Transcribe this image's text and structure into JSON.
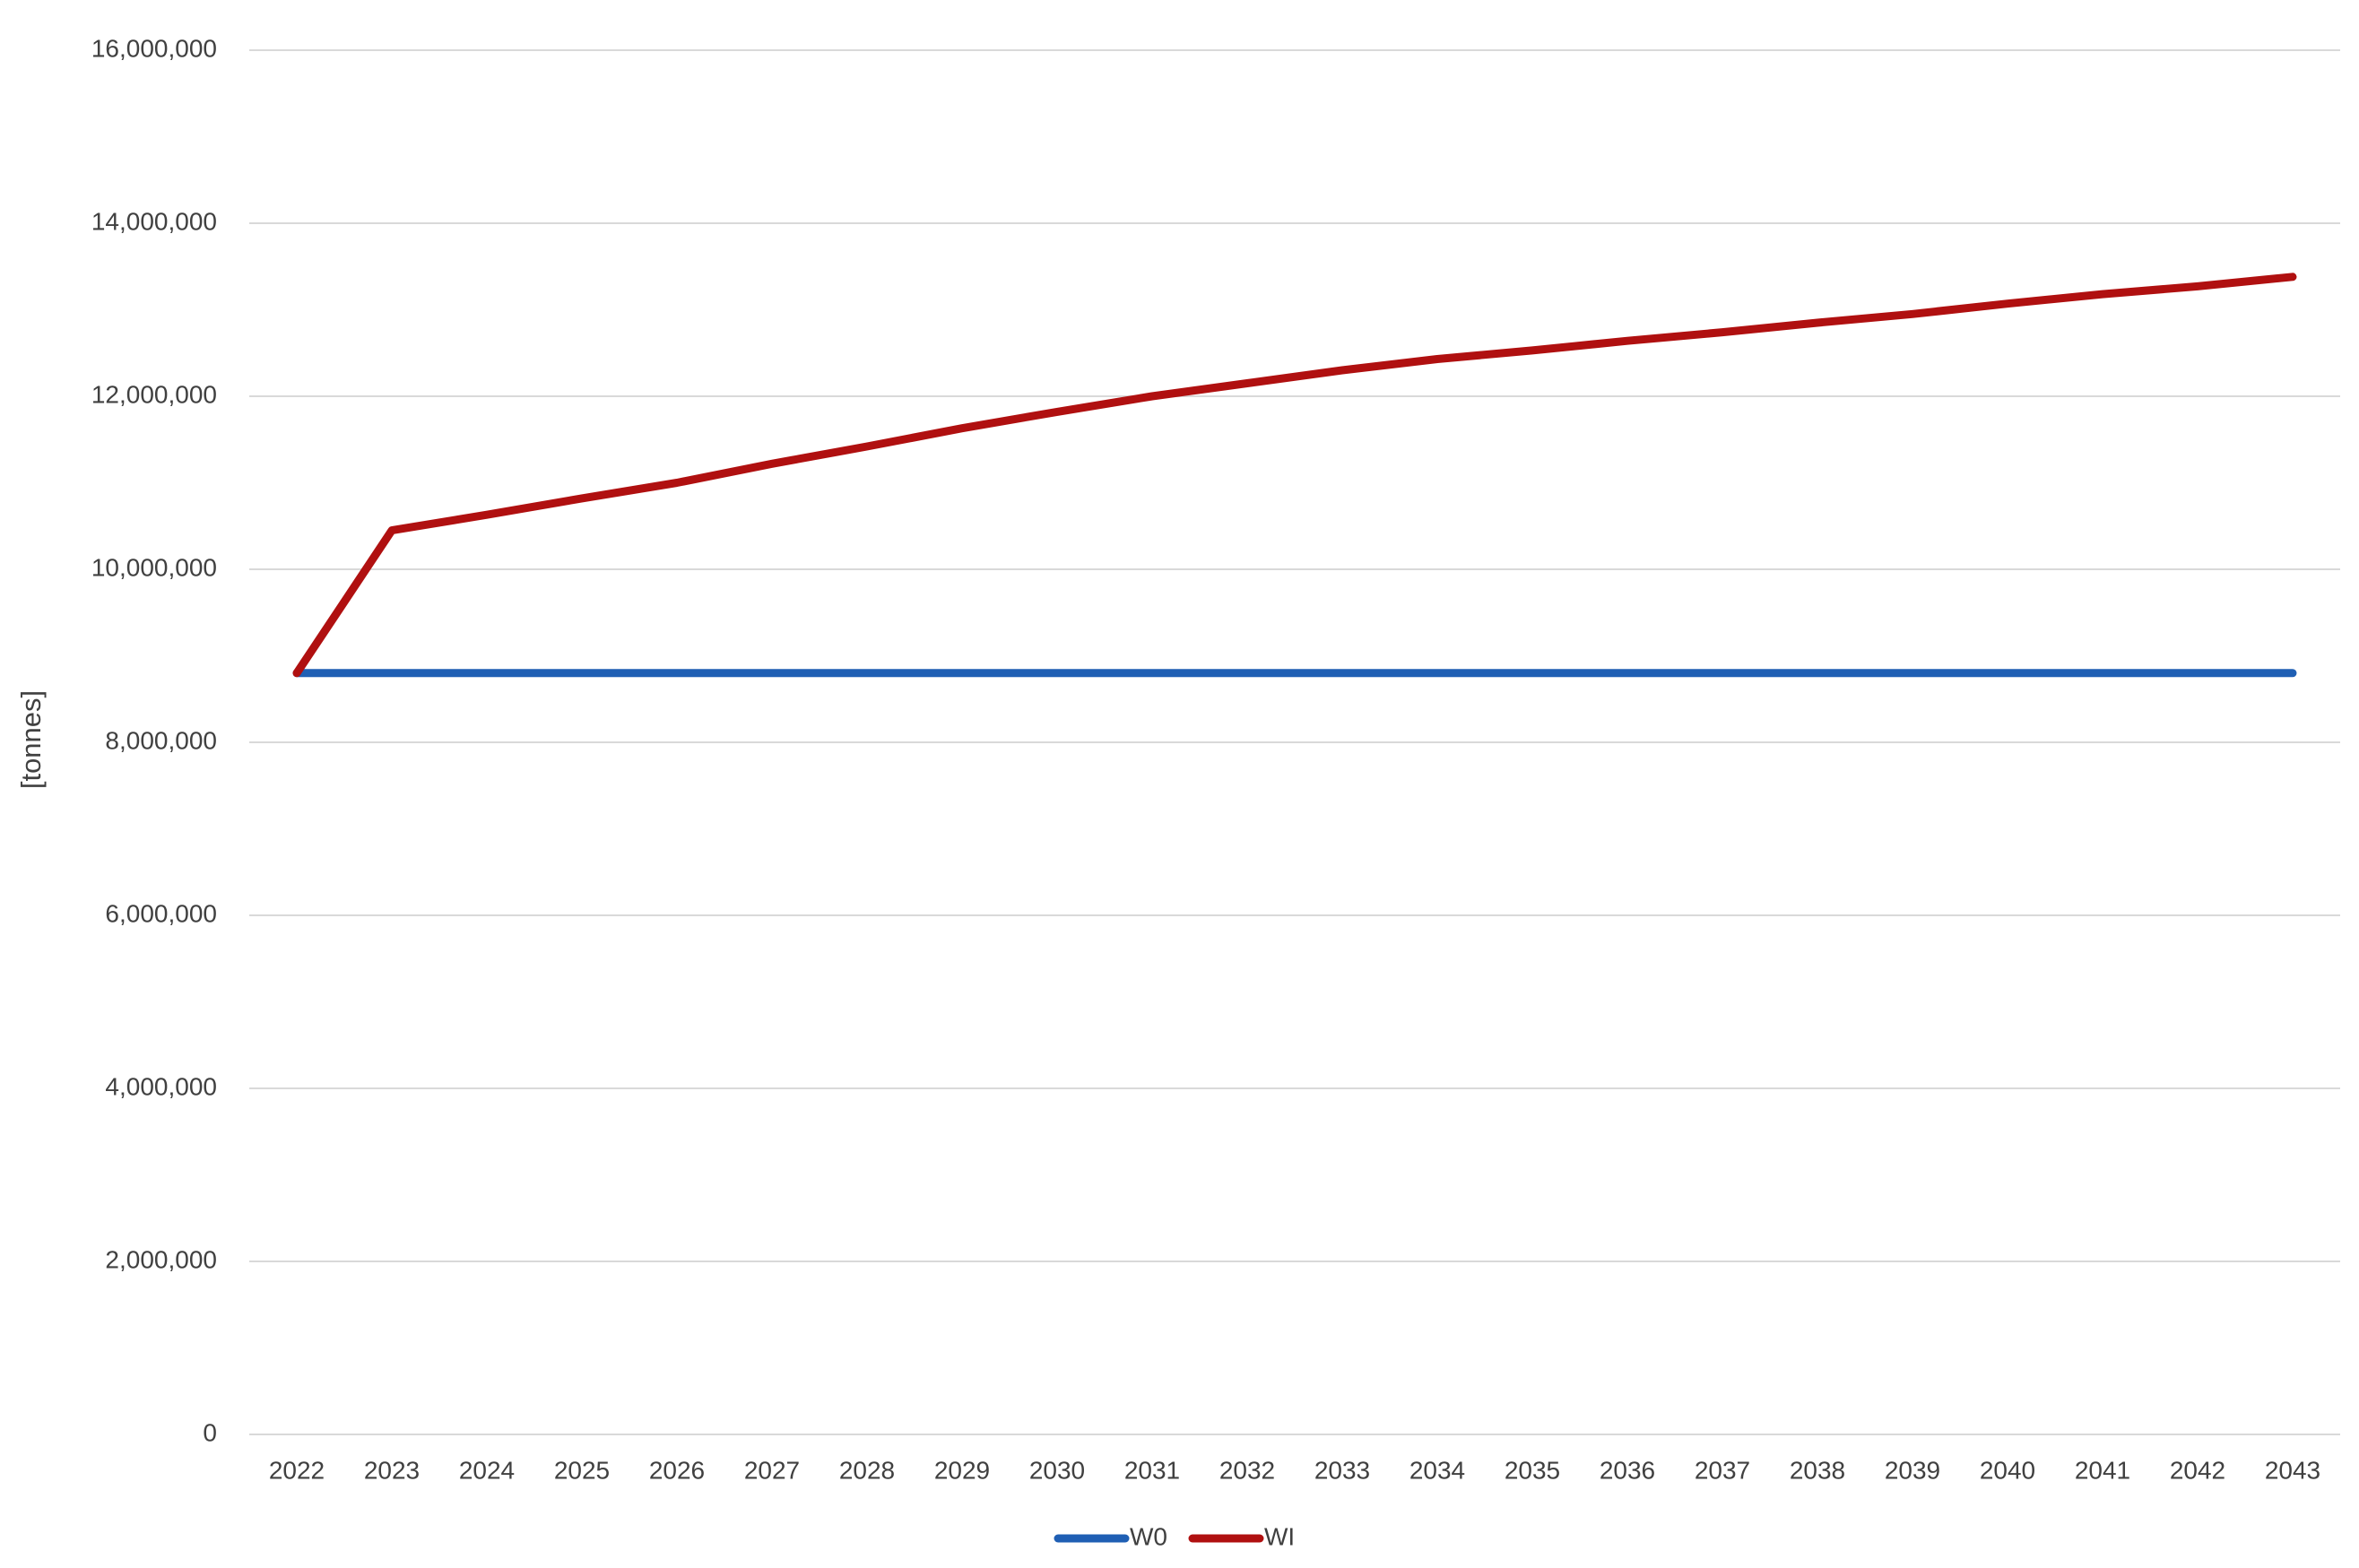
{
  "chart_data": {
    "type": "line",
    "y_label": "[tonnes]",
    "categories": [
      "2022",
      "2023",
      "2024",
      "2025",
      "2026",
      "2027",
      "2028",
      "2029",
      "2030",
      "2031",
      "2032",
      "2033",
      "2034",
      "2035",
      "2036",
      "2037",
      "2038",
      "2039",
      "2040",
      "2041",
      "2042",
      "2043"
    ],
    "series": [
      {
        "name": "W0",
        "color": "#1f5fb4",
        "values": [
          8800000,
          8800000,
          8800000,
          8800000,
          8800000,
          8800000,
          8800000,
          8800000,
          8800000,
          8800000,
          8800000,
          8800000,
          8800000,
          8800000,
          8800000,
          8800000,
          8800000,
          8800000,
          8800000,
          8800000,
          8800000,
          8800000
        ]
      },
      {
        "name": "WI",
        "color": "#b01010",
        "values": [
          8800000,
          10450000,
          10630000,
          10820000,
          11000000,
          11220000,
          11420000,
          11630000,
          11820000,
          12000000,
          12150000,
          12300000,
          12430000,
          12530000,
          12640000,
          12740000,
          12850000,
          12950000,
          13070000,
          13180000,
          13270000,
          13380000
        ]
      }
    ],
    "ylim": [
      0,
      16000000
    ],
    "yticks": [
      0,
      {
        "value": 2000000,
        "label": "2,000,000"
      },
      {
        "value": 4000000,
        "label": "4,000,000"
      },
      {
        "value": 6000000,
        "label": "6,000,000"
      },
      {
        "value": 8000000,
        "label": "8,000,000"
      },
      {
        "value": 10000000,
        "label": "10,000,000"
      },
      {
        "value": 12000000,
        "label": "12,000,000"
      },
      {
        "value": 14000000,
        "label": "14,000,000"
      },
      {
        "value": 16000000,
        "label": "16,000,000"
      }
    ],
    "grid": true,
    "legend": "bottom"
  }
}
